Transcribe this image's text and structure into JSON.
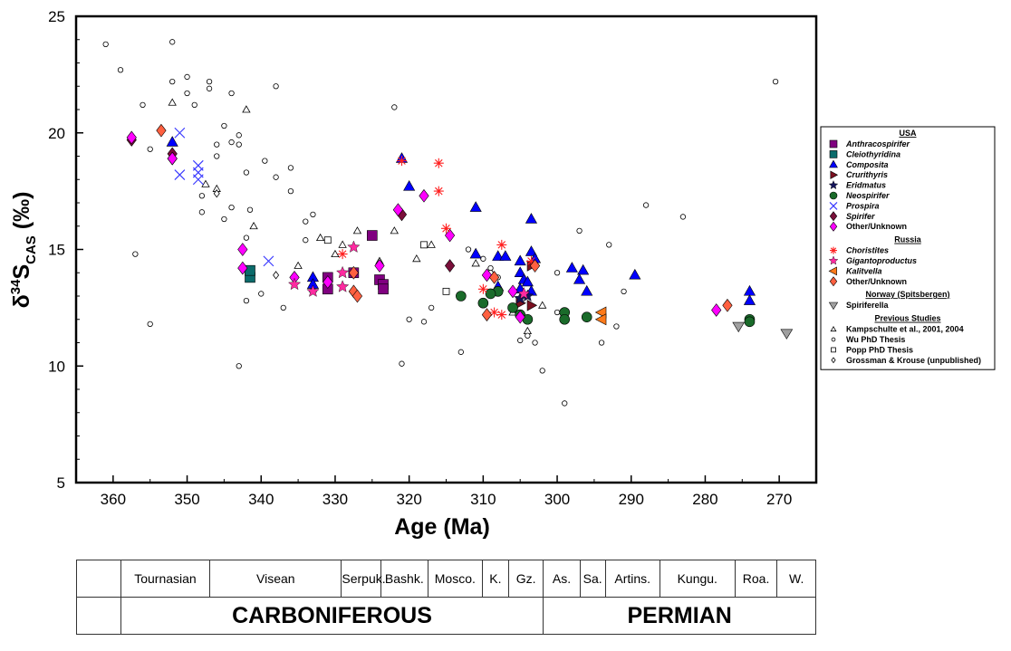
{
  "chart_data": {
    "type": "scatter",
    "title": "",
    "xlabel": "Age (Ma)",
    "ylabel_parts": {
      "delta": "δ",
      "sup": "34",
      "s": "S",
      "sub": "CAS",
      "unit": " (‰)"
    },
    "x_reversed": true,
    "xlim": [
      365,
      265
    ],
    "ylim": [
      5,
      25
    ],
    "x_ticks": [
      360,
      350,
      340,
      330,
      320,
      310,
      300,
      290,
      280,
      270
    ],
    "y_ticks": [
      5,
      10,
      15,
      20,
      25
    ],
    "grid": false,
    "legend_position": "right, outside plot",
    "legend_groups": [
      {
        "heading": "USA",
        "items": [
          {
            "label": "Anthracospirifer",
            "marker": "square",
            "color": "#800080"
          },
          {
            "label": "Cleiothyridina",
            "marker": "square",
            "color": "#0b6b6b"
          },
          {
            "label": "Composita",
            "marker": "triangle-up",
            "color": "#0000ff"
          },
          {
            "label": "Crurithyris",
            "marker": "triangle-right",
            "color": "#7a0f1f"
          },
          {
            "label": "Eridmatus",
            "marker": "star",
            "color": "#14145a"
          },
          {
            "label": "Neospirifer",
            "marker": "circle",
            "color": "#1a6b2a"
          },
          {
            "label": "Prospira",
            "marker": "x",
            "color": "#3a3aff"
          },
          {
            "label": "Spirifer",
            "marker": "diamond",
            "color": "#7a0f3a"
          },
          {
            "label": "Other/Unknown",
            "marker": "diamond",
            "color": "#ff00ff"
          }
        ]
      },
      {
        "heading": "Russia",
        "items": [
          {
            "label": "Choristites",
            "marker": "asterisk",
            "color": "#ff2020"
          },
          {
            "label": "Gigantoproductus",
            "marker": "star",
            "color": "#ff2aa0"
          },
          {
            "label": "Kalitvella",
            "marker": "triangle-left",
            "color": "#ff7a1a"
          },
          {
            "label": "Other/Unknown",
            "marker": "diamond",
            "color": "#ff6040"
          }
        ]
      },
      {
        "heading": "Norway (Spitsbergen)",
        "items": [
          {
            "label": "Spiriferella",
            "marker": "triangle-down",
            "color": "#a0a0a0"
          }
        ]
      },
      {
        "heading": "Previous Studies",
        "items": [
          {
            "label": "Kampschulte et al., 2001, 2004",
            "marker": "triangle-open",
            "color": "#000000"
          },
          {
            "label": "Wu PhD Thesis",
            "marker": "circle-open",
            "color": "#000000"
          },
          {
            "label": "Popp PhD Thesis",
            "marker": "square-open",
            "color": "#000000"
          },
          {
            "label": "Grossman & Krouse (unpublished)",
            "marker": "diamond-open",
            "color": "#000000"
          }
        ]
      }
    ],
    "series": [
      {
        "name": "Anthracospirifer",
        "points": [
          [
            325,
            15.6
          ],
          [
            324,
            13.7
          ],
          [
            323.5,
            13.5
          ],
          [
            323.5,
            13.3
          ],
          [
            331,
            13.3
          ],
          [
            331,
            13.8
          ],
          [
            327.5,
            14
          ]
        ]
      },
      {
        "name": "Cleiothyridina",
        "points": [
          [
            341.5,
            13.8
          ],
          [
            341.5,
            14.1
          ]
        ]
      },
      {
        "name": "Composita",
        "points": [
          [
            352,
            19.6
          ],
          [
            321,
            18.9
          ],
          [
            320,
            17.7
          ],
          [
            311,
            16.8
          ],
          [
            303.5,
            16.3
          ],
          [
            311,
            14.8
          ],
          [
            308,
            14.7
          ],
          [
            307,
            14.7
          ],
          [
            305,
            14.5
          ],
          [
            305,
            14
          ],
          [
            303.5,
            14.9
          ],
          [
            303,
            14.6
          ],
          [
            304.5,
            13.7
          ],
          [
            304,
            13.6
          ],
          [
            305,
            13.3
          ],
          [
            303.5,
            13.2
          ],
          [
            308,
            13.4
          ],
          [
            298,
            14.2
          ],
          [
            296.5,
            14.1
          ],
          [
            297,
            13.7
          ],
          [
            296,
            13.2
          ],
          [
            289.5,
            13.9
          ],
          [
            274,
            13.2
          ],
          [
            274,
            12.8
          ],
          [
            333,
            13.8
          ],
          [
            333,
            13.5
          ]
        ]
      },
      {
        "name": "Crurithyris",
        "points": [
          [
            303.5,
            14.3
          ],
          [
            303.5,
            12.6
          ],
          [
            305,
            12.7
          ]
        ]
      },
      {
        "name": "Eridmatus",
        "points": [
          [
            305,
            12.9
          ],
          [
            304,
            13
          ]
        ]
      },
      {
        "name": "Neospirifer",
        "points": [
          [
            313,
            13
          ],
          [
            310,
            12.7
          ],
          [
            308,
            13.2
          ],
          [
            306,
            12.5
          ],
          [
            305,
            12.2
          ],
          [
            304,
            12
          ],
          [
            299,
            12.3
          ],
          [
            299,
            12
          ],
          [
            296,
            12.1
          ],
          [
            274,
            12
          ],
          [
            274,
            11.9
          ],
          [
            309,
            13.1
          ]
        ]
      },
      {
        "name": "Prospira",
        "points": [
          [
            351,
            20
          ],
          [
            351,
            18.2
          ],
          [
            348.5,
            18.6
          ],
          [
            348.5,
            18.3
          ],
          [
            348.5,
            18
          ],
          [
            339,
            14.5
          ]
        ]
      },
      {
        "name": "Spirifer",
        "points": [
          [
            357.5,
            19.7
          ],
          [
            352,
            19.1
          ],
          [
            352,
            18.9
          ],
          [
            321,
            16.5
          ],
          [
            314.5,
            14.3
          ]
        ]
      },
      {
        "name": "Other/Unknown (USA)",
        "points": [
          [
            357.5,
            19.8
          ],
          [
            352,
            18.9
          ],
          [
            342.5,
            15
          ],
          [
            342.5,
            14.2
          ],
          [
            335.5,
            13.8
          ],
          [
            331,
            13.6
          ],
          [
            324,
            14.3
          ],
          [
            321.5,
            16.7
          ],
          [
            318,
            17.3
          ],
          [
            314.5,
            15.6
          ],
          [
            306,
            13.2
          ],
          [
            305,
            12.1
          ],
          [
            278.5,
            12.4
          ],
          [
            309.5,
            13.9
          ]
        ]
      },
      {
        "name": "Choristites",
        "points": [
          [
            329,
            14.8
          ],
          [
            321,
            18.8
          ],
          [
            316,
            18.7
          ],
          [
            316,
            17.5
          ],
          [
            315,
            15.9
          ],
          [
            310,
            13.3
          ],
          [
            307.5,
            15.2
          ],
          [
            307.5,
            12.2
          ],
          [
            308.5,
            12.3
          ],
          [
            303.5,
            14.5
          ]
        ]
      },
      {
        "name": "Gigantoproductus",
        "points": [
          [
            335.5,
            13.5
          ],
          [
            333,
            13.2
          ],
          [
            329,
            14
          ],
          [
            329,
            13.4
          ],
          [
            327.5,
            15.1
          ],
          [
            304.5,
            13.1
          ]
        ]
      },
      {
        "name": "Kalitvella",
        "points": [
          [
            294,
            12.3
          ],
          [
            294,
            12
          ]
        ]
      },
      {
        "name": "Other/Unknown (Russia)",
        "points": [
          [
            353.5,
            20.1
          ],
          [
            327.5,
            14
          ],
          [
            327.5,
            13.2
          ],
          [
            327,
            13
          ],
          [
            309.5,
            12.2
          ],
          [
            308.5,
            13.8
          ],
          [
            303,
            14.3
          ],
          [
            277,
            12.6
          ]
        ]
      },
      {
        "name": "Spiriferella",
        "points": [
          [
            275.5,
            11.7
          ],
          [
            269,
            11.4
          ]
        ]
      },
      {
        "name": "Kampschulte et al., 2001, 2004",
        "points": [
          [
            352,
            21.3
          ],
          [
            347.5,
            17.8
          ],
          [
            346,
            17.6
          ],
          [
            341,
            16
          ],
          [
            342,
            21
          ],
          [
            335,
            14.3
          ],
          [
            333,
            13.3
          ],
          [
            332,
            15.5
          ],
          [
            331,
            13.8
          ],
          [
            330,
            14.8
          ],
          [
            329,
            15.2
          ],
          [
            327,
            15.8
          ],
          [
            324,
            14.5
          ],
          [
            322,
            15.8
          ],
          [
            319,
            14.6
          ],
          [
            317,
            15.2
          ],
          [
            311,
            14.4
          ],
          [
            306,
            12.3
          ],
          [
            304,
            11.5
          ],
          [
            302,
            12.6
          ]
        ]
      },
      {
        "name": "Wu PhD Thesis",
        "points": [
          [
            361,
            23.8
          ],
          [
            359,
            22.7
          ],
          [
            356,
            21.2
          ],
          [
            355,
            19.3
          ],
          [
            355,
            11.8
          ],
          [
            357,
            14.8
          ],
          [
            352,
            23.9
          ],
          [
            352,
            22.2
          ],
          [
            350,
            22.4
          ],
          [
            350,
            21.7
          ],
          [
            349,
            21.2
          ],
          [
            347,
            22.2
          ],
          [
            347,
            21.9
          ],
          [
            346,
            19.5
          ],
          [
            346,
            19
          ],
          [
            344,
            21.7
          ],
          [
            343,
            19.5
          ],
          [
            343,
            19.9
          ],
          [
            342,
            18.3
          ],
          [
            341.5,
            16.7
          ],
          [
            339.5,
            18.8
          ],
          [
            338,
            18.1
          ],
          [
            338,
            22
          ],
          [
            336,
            18.5
          ],
          [
            336,
            17.5
          ],
          [
            345,
            20.3
          ],
          [
            345,
            16.3
          ],
          [
            344,
            19.6
          ],
          [
            343,
            10
          ],
          [
            344,
            16.8
          ],
          [
            348,
            17.3
          ],
          [
            348,
            16.6
          ],
          [
            342,
            15.5
          ],
          [
            342,
            12.8
          ],
          [
            340,
            13.1
          ],
          [
            337,
            12.5
          ],
          [
            334,
            16.2
          ],
          [
            334,
            15.4
          ],
          [
            333,
            16.5
          ],
          [
            322,
            21.1
          ],
          [
            321,
            10.1
          ],
          [
            320,
            12
          ],
          [
            318,
            11.9
          ],
          [
            317,
            12.5
          ],
          [
            313,
            10.6
          ],
          [
            312,
            15
          ],
          [
            310,
            14.6
          ],
          [
            309,
            14.2
          ],
          [
            309,
            14
          ],
          [
            308,
            13.8
          ],
          [
            305,
            11.1
          ],
          [
            304,
            11.3
          ],
          [
            303,
            11
          ],
          [
            302,
            9.8
          ],
          [
            299,
            8.4
          ],
          [
            300,
            12.3
          ],
          [
            297,
            15.8
          ],
          [
            293,
            15.2
          ],
          [
            292,
            11.7
          ],
          [
            291,
            13.2
          ],
          [
            288,
            16.9
          ],
          [
            283,
            16.4
          ],
          [
            270.5,
            22.2
          ],
          [
            294,
            11
          ],
          [
            300,
            14
          ]
        ]
      },
      {
        "name": "Popp PhD Thesis",
        "points": [
          [
            331,
            15.4
          ],
          [
            318,
            15.2
          ],
          [
            315,
            13.2
          ],
          [
            313,
            13
          ]
        ]
      },
      {
        "name": "Grossman & Krouse (unpublished)",
        "points": [
          [
            346,
            17.4
          ],
          [
            338,
            13.9
          ]
        ]
      }
    ]
  },
  "timescale": {
    "stages": [
      "Tournasian",
      "Visean",
      "Serpuk.",
      "Bashk.",
      "Mosco.",
      "K.",
      "Gz.",
      "As.",
      "Sa.",
      "Artins.",
      "Kungu.",
      "Roa.",
      "W."
    ],
    "periods": [
      "CARBONIFEROUS",
      "PERMIAN"
    ]
  }
}
